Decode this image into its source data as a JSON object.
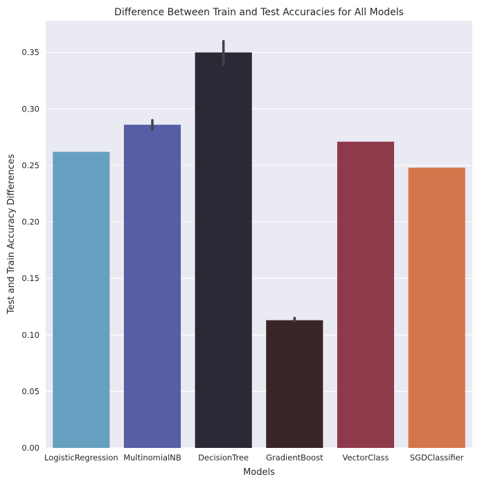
{
  "chart_data": {
    "type": "bar",
    "title": "Difference Between Train and Test Accuracies for All Models",
    "xlabel": "Models",
    "ylabel": "Test and Train Accuracy Differences",
    "ylim": [
      0,
      0.378
    ],
    "yticks": [
      0.0,
      0.05,
      0.1,
      0.15,
      0.2,
      0.25,
      0.3,
      0.35
    ],
    "ytick_labels": [
      "0.00",
      "0.05",
      "0.10",
      "0.15",
      "0.20",
      "0.25",
      "0.30",
      "0.35"
    ],
    "grid": true,
    "background": "#eaeaf2",
    "categories": [
      "LogisticRegression",
      "MultinomialNB",
      "DecisionTree",
      "GradientBoost",
      "VectorClass",
      "SGDClassifier"
    ],
    "values": [
      0.262,
      0.286,
      0.35,
      0.113,
      0.271,
      0.248
    ],
    "error_bars": [
      null,
      [
        0.282,
        0.29
      ],
      [
        0.339,
        0.36
      ],
      [
        0.112,
        0.115
      ],
      null,
      null
    ],
    "colors": [
      "#67a1c1",
      "#565ea5",
      "#2a2a37",
      "#3a2627",
      "#8f3a4b",
      "#d4764b"
    ]
  }
}
